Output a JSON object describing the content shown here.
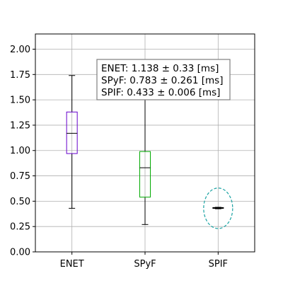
{
  "chart_data": {
    "type": "box",
    "categories": [
      "ENET",
      "SPyF",
      "SPIF"
    ],
    "ylabel": "",
    "ylim": [
      0,
      2.15
    ],
    "yticks": [
      "0.00",
      "0.25",
      "0.50",
      "0.75",
      "1.00",
      "1.25",
      "1.50",
      "1.75",
      "2.00"
    ],
    "grid": true,
    "boxes": [
      {
        "category": "ENET",
        "whisker_low": 0.43,
        "q1": 0.97,
        "median": 1.17,
        "q3": 1.38,
        "whisker_high": 1.74,
        "color": "#6600cc"
      },
      {
        "category": "SPyF",
        "whisker_low": 0.27,
        "q1": 0.54,
        "median": 0.83,
        "q3": 0.99,
        "whisker_high": 1.52,
        "color": "#00aa00"
      },
      {
        "category": "SPIF",
        "whisker_low": 0.425,
        "q1": 0.43,
        "median": 0.433,
        "q3": 0.437,
        "whisker_high": 0.44,
        "color": "#000000"
      }
    ],
    "highlight": {
      "category": "SPIF",
      "y_center": 0.43,
      "y_radius": 0.2,
      "shape": "dashed-ellipse",
      "color": "#1aa3a3"
    },
    "annotation": {
      "lines": [
        "ENET: 1.138 ± 0.33 [ms]",
        "SPyF: 0.783 ± 0.261 [ms]",
        "SPIF: 0.433 ± 0.006 [ms]"
      ],
      "placement": "top-center"
    }
  }
}
